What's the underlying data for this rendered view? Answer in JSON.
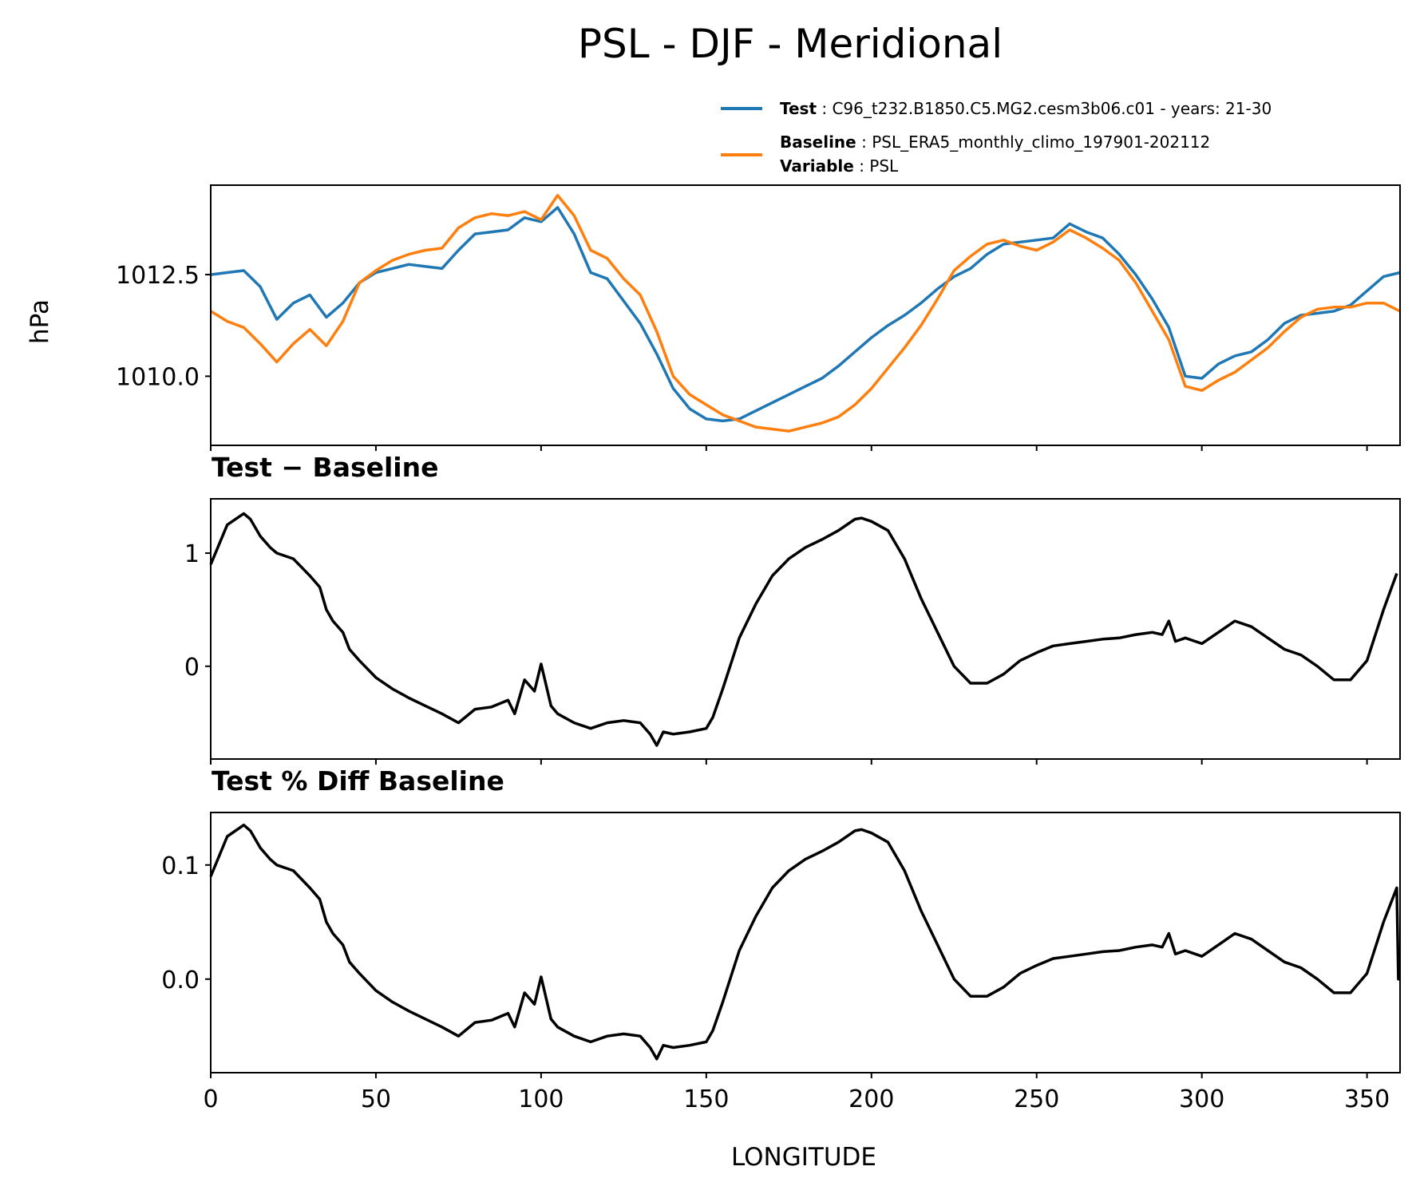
{
  "title": "PSL - DJF - Meridional",
  "legend": [
    {
      "key": "Test",
      "value": "C96_t232.B1850.C5.MG2.cesm3b06.c01 - years: 21-30",
      "color": "#1f77b4"
    },
    {
      "key": "Baseline",
      "value": "PSL_ERA5_monthly_climo_197901-202112",
      "color": "#ff7f0e"
    },
    {
      "key": "Variable",
      "value": "PSL"
    }
  ],
  "chart_data": [
    {
      "type": "line",
      "panel": "top",
      "title": "",
      "xlabel": "",
      "ylabel": "hPa",
      "xlim": [
        0,
        360
      ],
      "ylim": [
        1008.3,
        1014.7
      ],
      "yticks": [
        1010.0,
        1012.5
      ],
      "ytick_labels": [
        "1010.0",
        "1012.5"
      ],
      "xticks": [
        0,
        50,
        100,
        150,
        200,
        250,
        300,
        350
      ],
      "series": [
        {
          "name": "Test",
          "color": "#1f77b4",
          "x": [
            0,
            5,
            10,
            15,
            20,
            25,
            30,
            35,
            40,
            45,
            50,
            55,
            60,
            65,
            70,
            75,
            80,
            85,
            90,
            95,
            100,
            105,
            110,
            115,
            120,
            125,
            130,
            135,
            140,
            145,
            150,
            155,
            160,
            165,
            170,
            175,
            180,
            185,
            190,
            195,
            200,
            205,
            210,
            215,
            220,
            225,
            230,
            235,
            240,
            245,
            250,
            255,
            260,
            265,
            270,
            275,
            280,
            285,
            290,
            295,
            300,
            305,
            310,
            315,
            320,
            325,
            330,
            335,
            340,
            345,
            350,
            355,
            360
          ],
          "values": [
            1012.5,
            1012.55,
            1012.6,
            1012.2,
            1011.4,
            1011.8,
            1012.0,
            1011.45,
            1011.8,
            1012.3,
            1012.55,
            1012.65,
            1012.75,
            1012.7,
            1012.65,
            1013.1,
            1013.5,
            1013.55,
            1013.6,
            1013.9,
            1013.8,
            1014.15,
            1013.5,
            1012.55,
            1012.4,
            1011.85,
            1011.3,
            1010.55,
            1009.7,
            1009.2,
            1008.95,
            1008.9,
            1008.95,
            1009.15,
            1009.35,
            1009.55,
            1009.75,
            1009.95,
            1010.25,
            1010.6,
            1010.95,
            1011.25,
            1011.5,
            1011.8,
            1012.15,
            1012.45,
            1012.65,
            1013.0,
            1013.25,
            1013.3,
            1013.35,
            1013.4,
            1013.75,
            1013.55,
            1013.4,
            1013.0,
            1012.5,
            1011.9,
            1011.2,
            1010.0,
            1009.95,
            1010.3,
            1010.5,
            1010.6,
            1010.9,
            1011.3,
            1011.5,
            1011.55,
            1011.6,
            1011.75,
            1012.1,
            1012.45,
            1012.55
          ]
        },
        {
          "name": "Baseline",
          "color": "#ff7f0e",
          "x": [
            0,
            5,
            10,
            15,
            20,
            25,
            30,
            35,
            40,
            45,
            50,
            55,
            60,
            65,
            70,
            75,
            80,
            85,
            90,
            95,
            100,
            105,
            110,
            115,
            120,
            125,
            130,
            135,
            140,
            145,
            150,
            155,
            160,
            165,
            170,
            175,
            180,
            185,
            190,
            195,
            200,
            205,
            210,
            215,
            220,
            225,
            230,
            235,
            240,
            245,
            250,
            255,
            260,
            265,
            270,
            275,
            280,
            285,
            290,
            295,
            300,
            305,
            310,
            315,
            320,
            325,
            330,
            335,
            340,
            345,
            350,
            355,
            360
          ],
          "values": [
            1011.6,
            1011.35,
            1011.2,
            1010.8,
            1010.35,
            1010.8,
            1011.15,
            1010.75,
            1011.35,
            1012.3,
            1012.6,
            1012.85,
            1013.0,
            1013.1,
            1013.15,
            1013.65,
            1013.9,
            1014.0,
            1013.95,
            1014.05,
            1013.85,
            1014.45,
            1013.95,
            1013.1,
            1012.9,
            1012.4,
            1012.0,
            1011.1,
            1010.0,
            1009.55,
            1009.3,
            1009.05,
            1008.9,
            1008.75,
            1008.7,
            1008.65,
            1008.75,
            1008.85,
            1009.0,
            1009.3,
            1009.7,
            1010.2,
            1010.7,
            1011.25,
            1011.9,
            1012.6,
            1012.95,
            1013.25,
            1013.35,
            1013.2,
            1013.1,
            1013.3,
            1013.6,
            1013.4,
            1013.15,
            1012.85,
            1012.3,
            1011.6,
            1010.9,
            1009.75,
            1009.65,
            1009.9,
            1010.1,
            1010.4,
            1010.7,
            1011.1,
            1011.45,
            1011.65,
            1011.7,
            1011.7,
            1011.8,
            1011.8,
            1011.6
          ]
        }
      ]
    },
    {
      "type": "line",
      "panel": "middle",
      "title": "Test − Baseline",
      "xlim": [
        0,
        360
      ],
      "ylim": [
        -0.82,
        1.48
      ],
      "yticks": [
        0,
        1
      ],
      "ytick_labels": [
        "0",
        "1"
      ],
      "xticks": [
        0,
        50,
        100,
        150,
        200,
        250,
        300,
        350
      ],
      "series": [
        {
          "color": "#000000",
          "x": [
            0,
            5,
            10,
            12,
            15,
            18,
            20,
            25,
            30,
            33,
            35,
            37,
            40,
            42,
            45,
            50,
            55,
            60,
            65,
            70,
            75,
            80,
            85,
            90,
            92,
            95,
            98,
            100,
            103,
            105,
            110,
            115,
            120,
            125,
            130,
            133,
            135,
            137,
            140,
            145,
            150,
            152,
            155,
            160,
            165,
            170,
            175,
            180,
            185,
            190,
            195,
            197,
            200,
            205,
            210,
            215,
            220,
            225,
            230,
            235,
            240,
            245,
            250,
            255,
            260,
            265,
            270,
            275,
            280,
            285,
            288,
            290,
            292,
            295,
            300,
            305,
            310,
            315,
            320,
            325,
            330,
            335,
            340,
            345,
            350,
            355,
            359
          ],
          "values": [
            0.9,
            1.25,
            1.35,
            1.3,
            1.15,
            1.05,
            1.0,
            0.95,
            0.8,
            0.7,
            0.5,
            0.4,
            0.3,
            0.15,
            0.05,
            -0.1,
            -0.2,
            -0.28,
            -0.35,
            -0.42,
            -0.5,
            -0.38,
            -0.36,
            -0.3,
            -0.42,
            -0.12,
            -0.22,
            0.02,
            -0.35,
            -0.42,
            -0.5,
            -0.55,
            -0.5,
            -0.48,
            -0.5,
            -0.6,
            -0.7,
            -0.58,
            -0.6,
            -0.58,
            -0.55,
            -0.45,
            -0.2,
            0.25,
            0.55,
            0.8,
            0.95,
            1.05,
            1.12,
            1.2,
            1.3,
            1.31,
            1.28,
            1.2,
            0.95,
            0.6,
            0.3,
            0.0,
            -0.15,
            -0.15,
            -0.07,
            0.05,
            0.12,
            0.18,
            0.2,
            0.22,
            0.24,
            0.25,
            0.28,
            0.3,
            0.28,
            0.4,
            0.22,
            0.25,
            0.2,
            0.3,
            0.4,
            0.35,
            0.25,
            0.15,
            0.1,
            0.0,
            -0.12,
            -0.12,
            0.05,
            0.5,
            0.82
          ]
        }
      ]
    },
    {
      "type": "line",
      "panel": "bottom",
      "title": "Test % Diff Baseline",
      "xlabel": "LONGITUDE",
      "xlim": [
        0,
        360
      ],
      "ylim": [
        -0.082,
        0.146
      ],
      "yticks": [
        0.0,
        0.1
      ],
      "ytick_labels": [
        "0.0",
        "0.1"
      ],
      "xticks": [
        0,
        50,
        100,
        150,
        200,
        250,
        300,
        350
      ],
      "xtick_labels": [
        "0",
        "50",
        "100",
        "150",
        "200",
        "250",
        "300",
        "350"
      ],
      "series": [
        {
          "color": "#000000",
          "x": [
            0,
            5,
            10,
            12,
            15,
            18,
            20,
            25,
            30,
            33,
            35,
            37,
            40,
            42,
            45,
            50,
            55,
            60,
            65,
            70,
            75,
            80,
            85,
            90,
            92,
            95,
            98,
            100,
            103,
            105,
            110,
            115,
            120,
            125,
            130,
            133,
            135,
            137,
            140,
            145,
            150,
            152,
            155,
            160,
            165,
            170,
            175,
            180,
            185,
            190,
            195,
            197,
            200,
            205,
            210,
            215,
            220,
            225,
            230,
            235,
            240,
            245,
            250,
            255,
            260,
            265,
            270,
            275,
            280,
            285,
            288,
            290,
            292,
            295,
            300,
            305,
            310,
            315,
            320,
            325,
            330,
            335,
            340,
            345,
            350,
            355,
            359,
            359.5,
            360
          ],
          "values": [
            0.09,
            0.125,
            0.135,
            0.13,
            0.115,
            0.105,
            0.1,
            0.095,
            0.08,
            0.07,
            0.05,
            0.04,
            0.03,
            0.015,
            0.005,
            -0.01,
            -0.02,
            -0.028,
            -0.035,
            -0.042,
            -0.05,
            -0.038,
            -0.036,
            -0.03,
            -0.042,
            -0.012,
            -0.022,
            0.002,
            -0.035,
            -0.042,
            -0.05,
            -0.055,
            -0.05,
            -0.048,
            -0.05,
            -0.06,
            -0.07,
            -0.058,
            -0.06,
            -0.058,
            -0.055,
            -0.045,
            -0.02,
            0.025,
            0.055,
            0.08,
            0.095,
            0.105,
            0.112,
            0.12,
            0.13,
            0.131,
            0.128,
            0.12,
            0.095,
            0.06,
            0.03,
            0.0,
            -0.015,
            -0.015,
            -0.007,
            0.005,
            0.012,
            0.018,
            0.02,
            0.022,
            0.024,
            0.025,
            0.028,
            0.03,
            0.028,
            0.04,
            0.022,
            0.025,
            0.02,
            0.03,
            0.04,
            0.035,
            0.025,
            0.015,
            0.01,
            0.0,
            -0.012,
            -0.012,
            0.005,
            0.05,
            0.08,
            0.0,
            0.0
          ]
        }
      ]
    }
  ]
}
